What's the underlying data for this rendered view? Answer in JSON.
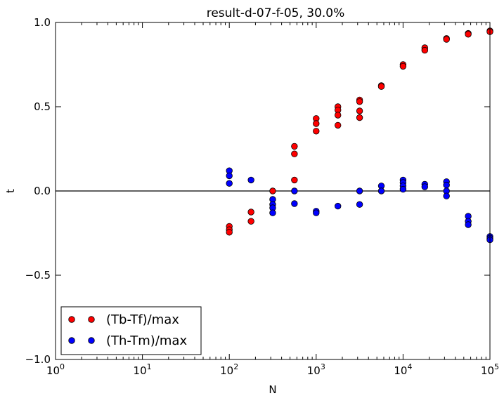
{
  "chart_data": {
    "type": "scatter",
    "title": "result-d-07-f-05, 30.0%",
    "xlabel": "N",
    "ylabel": "t",
    "xscale": "log",
    "xlim": [
      1,
      100000
    ],
    "ylim": [
      -1.0,
      1.0
    ],
    "x_ticks": [
      {
        "value": 1,
        "base": "10",
        "exp": "0"
      },
      {
        "value": 10,
        "base": "10",
        "exp": "1"
      },
      {
        "value": 100,
        "base": "10",
        "exp": "2"
      },
      {
        "value": 1000,
        "base": "10",
        "exp": "3"
      },
      {
        "value": 10000,
        "base": "10",
        "exp": "4"
      },
      {
        "value": 100000,
        "base": "10",
        "exp": "5"
      }
    ],
    "y_ticks": [
      {
        "value": -1.0,
        "label": "−1.0"
      },
      {
        "value": -0.5,
        "label": "−0.5"
      },
      {
        "value": 0.0,
        "label": "0.0"
      },
      {
        "value": 0.5,
        "label": "0.5"
      },
      {
        "value": 1.0,
        "label": "1.0"
      }
    ],
    "grid": false,
    "zero_line": true,
    "legend": {
      "placement": "lower-left"
    },
    "series": [
      {
        "name": "(Tb-Tf)/max",
        "color": "#ff0000",
        "points": [
          [
            100,
            -0.21
          ],
          [
            100,
            -0.23
          ],
          [
            100,
            -0.245
          ],
          [
            178,
            -0.125
          ],
          [
            178,
            -0.18
          ],
          [
            316,
            0.0
          ],
          [
            562,
            0.265
          ],
          [
            562,
            0.22
          ],
          [
            562,
            0.065
          ],
          [
            1000,
            0.43
          ],
          [
            1000,
            0.4
          ],
          [
            1000,
            0.355
          ],
          [
            1778,
            0.5
          ],
          [
            1778,
            0.48
          ],
          [
            1778,
            0.45
          ],
          [
            1778,
            0.39
          ],
          [
            3162,
            0.54
          ],
          [
            3162,
            0.53
          ],
          [
            3162,
            0.475
          ],
          [
            3162,
            0.435
          ],
          [
            5623,
            0.625
          ],
          [
            5623,
            0.62
          ],
          [
            10000,
            0.75
          ],
          [
            10000,
            0.74
          ],
          [
            17783,
            0.85
          ],
          [
            17783,
            0.835
          ],
          [
            31623,
            0.905
          ],
          [
            31623,
            0.9
          ],
          [
            56234,
            0.935
          ],
          [
            56234,
            0.93
          ],
          [
            100000,
            0.95
          ],
          [
            100000,
            0.945
          ]
        ]
      },
      {
        "name": "(Th-Tm)/max",
        "color": "#0000ff",
        "points": [
          [
            100,
            0.12
          ],
          [
            100,
            0.09
          ],
          [
            100,
            0.045
          ],
          [
            178,
            0.065
          ],
          [
            316,
            -0.05
          ],
          [
            316,
            -0.08
          ],
          [
            316,
            -0.1
          ],
          [
            316,
            -0.13
          ],
          [
            562,
            0.0
          ],
          [
            562,
            -0.075
          ],
          [
            1000,
            -0.12
          ],
          [
            1000,
            -0.13
          ],
          [
            1778,
            -0.09
          ],
          [
            3162,
            0.0
          ],
          [
            3162,
            -0.08
          ],
          [
            5623,
            0.03
          ],
          [
            5623,
            0.0
          ],
          [
            10000,
            0.065
          ],
          [
            10000,
            0.05
          ],
          [
            10000,
            0.03
          ],
          [
            10000,
            0.01
          ],
          [
            17783,
            0.04
          ],
          [
            17783,
            0.025
          ],
          [
            31623,
            0.055
          ],
          [
            31623,
            0.035
          ],
          [
            31623,
            0.0
          ],
          [
            31623,
            -0.03
          ],
          [
            56234,
            -0.15
          ],
          [
            56234,
            -0.18
          ],
          [
            56234,
            -0.2
          ],
          [
            100000,
            -0.27
          ],
          [
            100000,
            -0.28
          ],
          [
            100000,
            -0.29
          ]
        ]
      }
    ]
  }
}
